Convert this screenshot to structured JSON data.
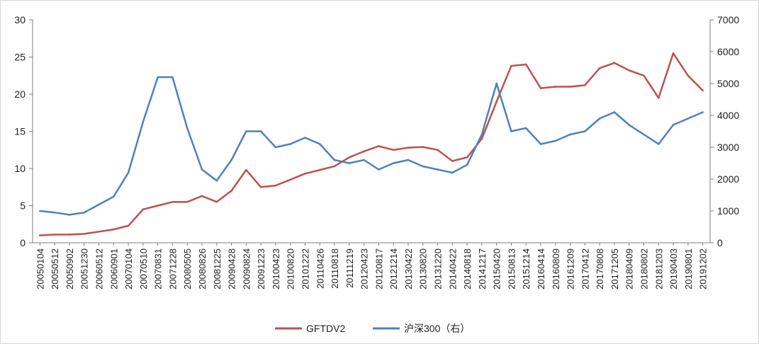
{
  "chart_data": {
    "type": "line",
    "title": "",
    "xlabel": "",
    "ylabel": "",
    "ylim_left": [
      0,
      30
    ],
    "ylim_right": [
      0,
      7000
    ],
    "yticks_left": [
      "0",
      "5",
      "10",
      "15",
      "20",
      "25",
      "30"
    ],
    "yticks_right": [
      "0",
      "1000",
      "2000",
      "3000",
      "4000",
      "5000",
      "6000",
      "7000"
    ],
    "x": [
      "20050104",
      "20050512",
      "20050902",
      "20051230",
      "20060512",
      "20060901",
      "20070104",
      "20070510",
      "20070831",
      "20071228",
      "20080505",
      "20080826",
      "20081225",
      "20090428",
      "20090824",
      "20091223",
      "20100423",
      "20100820",
      "20101222",
      "20110426",
      "20110818",
      "20111219",
      "20120423",
      "20120817",
      "20121214",
      "20130422",
      "20130820",
      "20131220",
      "20140422",
      "20140818",
      "20141217",
      "20150420",
      "20150813",
      "20151214",
      "20160414",
      "20160809",
      "20161209",
      "20170412",
      "20170808",
      "20171205",
      "20180409",
      "20180802",
      "20181203",
      "20190403",
      "20190801",
      "20191202"
    ],
    "legend_position": "bottom",
    "grid": false,
    "series": [
      {
        "name": "GFTDV2",
        "axis": "left",
        "color": "#c0504d",
        "values": [
          1.0,
          1.1,
          1.1,
          1.2,
          1.5,
          1.8,
          2.3,
          4.5,
          5.0,
          5.5,
          5.5,
          6.3,
          5.5,
          7.0,
          9.8,
          7.5,
          7.7,
          8.5,
          9.3,
          9.8,
          10.3,
          11.5,
          12.3,
          13.0,
          12.5,
          12.8,
          12.9,
          12.5,
          11.0,
          11.5,
          14.0,
          19.0,
          23.8,
          24.0,
          20.8,
          21.0,
          21.0,
          21.2,
          23.5,
          24.2,
          23.2,
          22.5,
          19.5,
          25.5,
          22.5,
          20.5
        ]
      },
      {
        "name": "沪深300（右）",
        "axis": "right",
        "color": "#4f81bd",
        "values": [
          1000,
          950,
          880,
          950,
          1200,
          1450,
          2200,
          3800,
          5200,
          5200,
          3600,
          2300,
          1950,
          2600,
          3500,
          3500,
          3000,
          3100,
          3300,
          3100,
          2600,
          2500,
          2600,
          2300,
          2500,
          2600,
          2400,
          2300,
          2200,
          2450,
          3400,
          5000,
          3500,
          3600,
          3100,
          3200,
          3400,
          3500,
          3900,
          4100,
          3700,
          3400,
          3100,
          3700,
          3900,
          4100
        ]
      }
    ]
  }
}
